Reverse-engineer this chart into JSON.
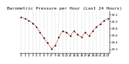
{
  "title": "Barometric Pressure per Hour (Last 24 Hours)",
  "hours": [
    0,
    1,
    2,
    3,
    4,
    5,
    6,
    7,
    8,
    9,
    10,
    11,
    12,
    13,
    14,
    15,
    16,
    17,
    18,
    19,
    20,
    21,
    22,
    23
  ],
  "pressure": [
    30.12,
    30.08,
    30.02,
    29.95,
    29.85,
    29.68,
    29.52,
    29.38,
    29.22,
    29.3,
    29.55,
    29.72,
    29.68,
    29.58,
    29.72,
    29.62,
    29.55,
    29.68,
    29.58,
    29.72,
    29.85,
    29.92,
    30.02,
    30.08
  ],
  "ylim": [
    29.1,
    30.3
  ],
  "yticks": [
    29.2,
    29.4,
    29.6,
    29.8,
    30.0,
    30.2
  ],
  "ytick_labels": [
    "29.2",
    "29.4",
    "29.6",
    "29.8",
    "30.0",
    "30.2"
  ],
  "line_color": "#cc0000",
  "marker_color": "#000000",
  "bg_color": "#ffffff",
  "grid_color": "#999999",
  "title_fontsize": 4.5,
  "tick_fontsize": 3.2,
  "line_width": 0.6,
  "marker_size": 1.2
}
